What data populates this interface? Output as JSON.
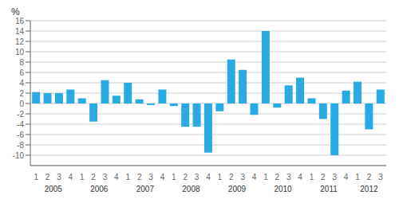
{
  "chart_data": {
    "type": "bar",
    "ylabel": "%",
    "categories": [
      "1",
      "2",
      "3",
      "4",
      "1",
      "2",
      "3",
      "4",
      "1",
      "2",
      "3",
      "4",
      "1",
      "2",
      "3",
      "4",
      "1",
      "2",
      "3",
      "4",
      "1",
      "2",
      "3",
      "4",
      "1",
      "2",
      "3",
      "4",
      "1",
      "2",
      "3"
    ],
    "annotations": [
      "2005",
      "2006",
      "2007",
      "2008",
      "2009",
      "2010",
      "2011",
      "2012"
    ],
    "values": [
      2.2,
      2.0,
      2.0,
      2.7,
      1.0,
      -3.5,
      4.5,
      1.5,
      4.0,
      0.8,
      -0.3,
      2.7,
      -0.5,
      -4.5,
      -4.5,
      -9.5,
      -1.5,
      8.5,
      6.5,
      -2.2,
      14.0,
      -0.8,
      3.5,
      5.0,
      1.0,
      -3.0,
      -10.0,
      2.5,
      4.2,
      -5.0,
      2.7
    ],
    "color": "#29abe2",
    "ylim": [
      -12,
      16
    ],
    "yticks": [
      -10,
      -8,
      -6,
      -4,
      -2,
      0,
      2,
      4,
      6,
      8,
      10,
      12,
      14,
      16
    ],
    "grid": true
  }
}
